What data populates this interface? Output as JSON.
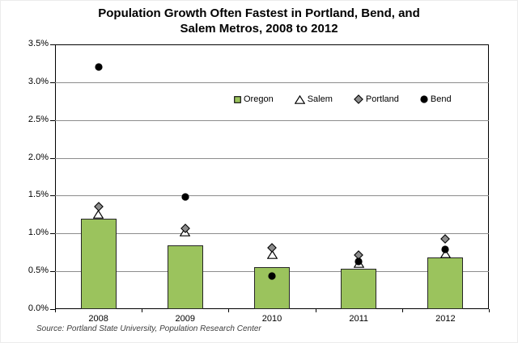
{
  "title": {
    "line1": "Population Growth Often Fastest in Portland, Bend, and",
    "line2": "Salem Metros, 2008 to 2012"
  },
  "source": "Source: Portland State University, Population Research Center",
  "chart_data": {
    "type": "bar",
    "subtype": "bar-with-scatter-markers",
    "title": "Population Growth Often Fastest in Portland, Bend, and Salem Metros, 2008 to 2012",
    "categories": [
      "2008",
      "2009",
      "2010",
      "2011",
      "2012"
    ],
    "series": [
      {
        "name": "Oregon",
        "style": "bar",
        "marker": "square",
        "color": "#9BC35D",
        "values": [
          1.2,
          0.84,
          0.56,
          0.53,
          0.68
        ]
      },
      {
        "name": "Salem",
        "style": "point",
        "marker": "triangle",
        "color": "#FFFFFF",
        "values": [
          1.25,
          1.02,
          0.72,
          0.6,
          0.73
        ]
      },
      {
        "name": "Portland",
        "style": "point",
        "marker": "diamond",
        "color": "#8C8C8C",
        "values": [
          1.35,
          1.07,
          0.81,
          0.72,
          0.93
        ]
      },
      {
        "name": "Bend",
        "style": "point",
        "marker": "circle",
        "color": "#000000",
        "values": [
          3.2,
          1.48,
          0.44,
          0.63,
          0.79
        ]
      }
    ],
    "xlabel": "",
    "ylabel": "",
    "ylim": [
      0,
      3.5
    ],
    "ytick_step": 0.5,
    "ytick_format": "percent1",
    "grid": "horizontal",
    "legend_position": "top-right-inside",
    "colors": {
      "bar_fill": "#9BC35D",
      "bar_border": "#262626",
      "gridline": "#8C8C8C",
      "axis": "#000000",
      "marker_outline": "#000000"
    }
  }
}
